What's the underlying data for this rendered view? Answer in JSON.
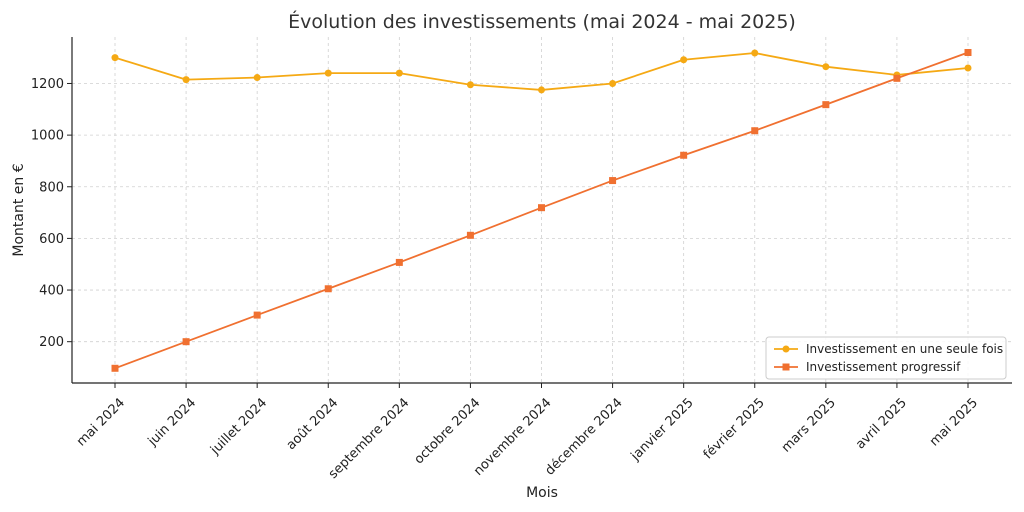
{
  "chart_data": {
    "type": "line",
    "title": "Évolution des investissements (mai 2024 - mai 2025)",
    "xlabel": "Mois",
    "ylabel": "Montant en €",
    "categories": [
      "mai 2024",
      "juin 2024",
      "juillet 2024",
      "août 2024",
      "septembre 2024",
      "octobre 2024",
      "novembre 2024",
      "décembre 2024",
      "janvier 2025",
      "février 2025",
      "mars 2025",
      "avril 2025",
      "mai 2025"
    ],
    "ylim": [
      40,
      1380
    ],
    "yticks": [
      200,
      400,
      600,
      800,
      1000,
      1200
    ],
    "grid": true,
    "legend_position": "bottom-right",
    "series": [
      {
        "name": "Investissement en une seule fois",
        "color": "#f5a914",
        "marker": "circle",
        "values": [
          1300,
          1215,
          1223,
          1240,
          1240,
          1195,
          1175,
          1200,
          1292,
          1318,
          1265,
          1233,
          1260
        ]
      },
      {
        "name": "Investissement progressif",
        "color": "#f07030",
        "marker": "square",
        "values": [
          97,
          200,
          303,
          405,
          507,
          612,
          719,
          824,
          922,
          1017,
          1118,
          1220,
          1320
        ]
      }
    ]
  }
}
